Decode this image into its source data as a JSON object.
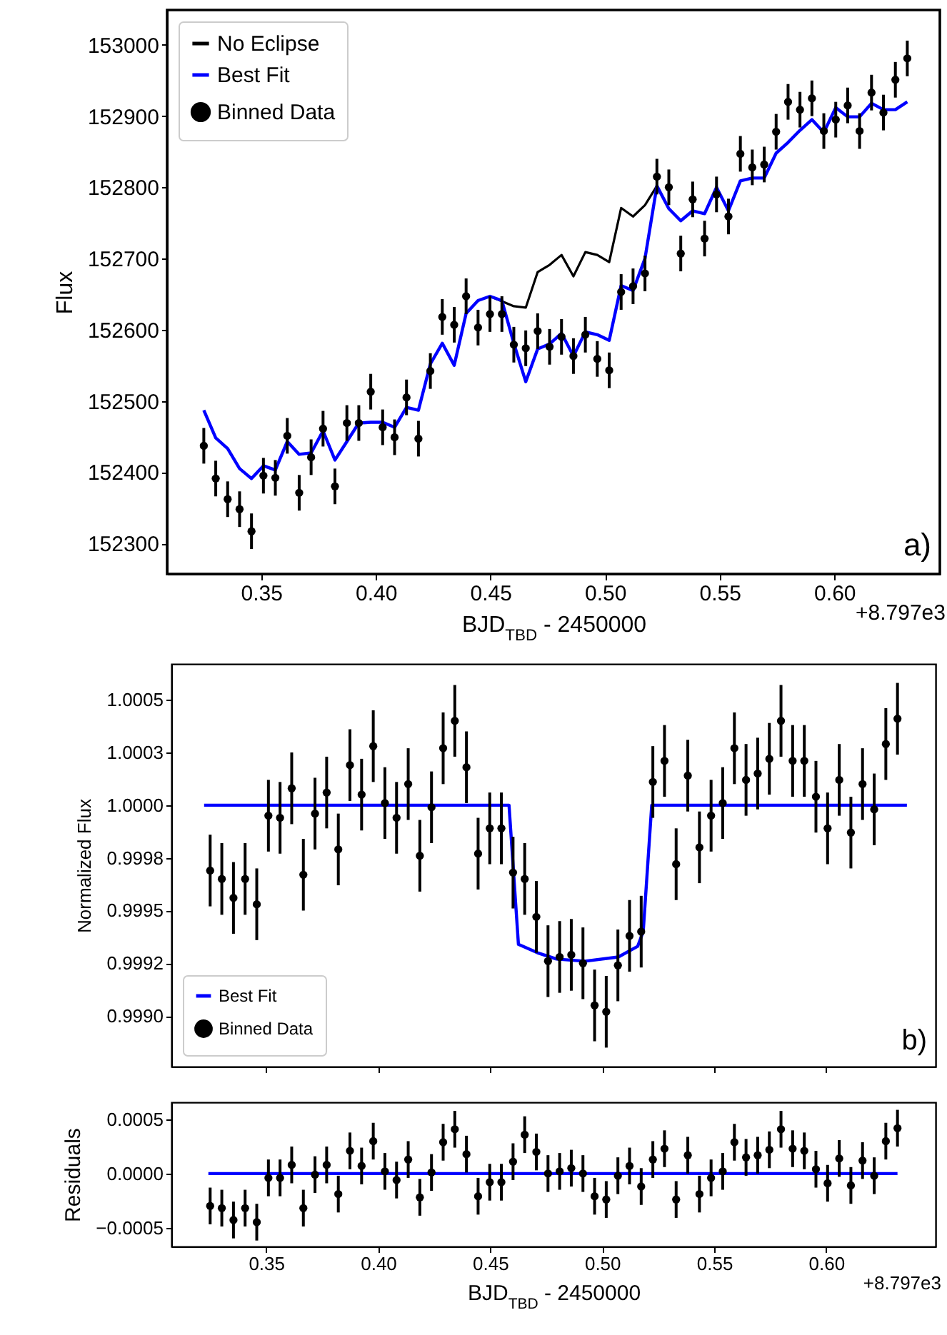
{
  "chart_data": [
    {
      "type": "scatter",
      "xlabel": "BJD$_{TBD}$ - 2450000",
      "ylabel": "Flux",
      "xlim": [
        0.309,
        0.646
      ],
      "xticks": [
        0.35,
        {
          "value": 0.4,
          "label": "0.40"
        },
        0.45,
        {
          "value": 0.5,
          "label": "0.50"
        },
        0.55,
        {
          "value": 0.6,
          "label": "0.60"
        }
      ],
      "ylim": [
        152257,
        153049
      ],
      "yticks": [
        152300,
        152400,
        152500,
        152600,
        152700,
        152800,
        152900,
        153000
      ],
      "legend": "top left",
      "grid": false,
      "annotations": [
        "a)",
        "+8.797e3"
      ],
      "x": [
        0.325,
        0.3302,
        0.3354,
        0.3406,
        0.3458,
        0.351,
        0.3562,
        0.3614,
        0.3666,
        0.3718,
        0.377,
        0.3822,
        0.3874,
        0.3926,
        0.3978,
        0.403,
        0.4082,
        0.4134,
        0.4186,
        0.4238,
        0.429,
        0.4342,
        0.4394,
        0.4446,
        0.4498,
        0.455,
        0.4602,
        0.4654,
        0.4706,
        0.4758,
        0.481,
        0.4862,
        0.4914,
        0.4966,
        0.5018,
        0.507,
        0.5122,
        0.5174,
        0.5226,
        0.5278,
        0.533,
        0.5382,
        0.5434,
        0.5486,
        0.5538,
        0.559,
        0.5642,
        0.5694,
        0.5746,
        0.5798,
        0.585,
        0.5902,
        0.5954,
        0.6006,
        0.6058,
        0.611,
        0.6162,
        0.6214,
        0.6266,
        0.6318
      ],
      "series": [
        {
          "name": "No Eclipse",
          "type": "line",
          "color": "#000000",
          "values": [
            null,
            null,
            null,
            null,
            null,
            null,
            null,
            null,
            null,
            null,
            null,
            null,
            null,
            null,
            null,
            null,
            null,
            null,
            null,
            null,
            null,
            null,
            null,
            null,
            152647,
            152640,
            152633,
            152631,
            152681,
            152691,
            152705,
            152675,
            152709,
            152705,
            152695,
            152771,
            152759,
            152775,
            152802,
            null,
            null,
            null,
            null,
            null,
            null,
            null,
            null,
            null,
            null,
            null,
            null,
            null,
            null,
            null,
            null,
            null,
            null,
            null,
            null,
            null
          ]
        },
        {
          "name": "Best Fit",
          "type": "line",
          "color": "#0000ff",
          "values": [
            152487,
            152448,
            152433,
            152405,
            152391,
            152409,
            152403,
            152443,
            152425,
            152427,
            152458,
            152417,
            152443,
            152469,
            152470,
            152470,
            152463,
            152491,
            152487,
            152552,
            152581,
            152550,
            152623,
            152641,
            152647,
            152641,
            152581,
            152527,
            152573,
            152580,
            152595,
            152563,
            152597,
            152593,
            152585,
            152662,
            152655,
            152700,
            152802,
            152770,
            152753,
            152767,
            152763,
            152800,
            152767,
            152809,
            152813,
            152813,
            152848,
            152863,
            152880,
            152895,
            152877,
            152912,
            152899,
            152899,
            152918,
            152909,
            152909,
            152920
          ]
        },
        {
          "name": "Binned Data",
          "marker": "circle",
          "color": "#000000",
          "values": [
            152437,
            152391,
            152362,
            152348,
            152317,
            152395,
            152392,
            152451,
            152371,
            152421,
            152461,
            152380,
            152469,
            152469,
            152513,
            152463,
            152449,
            152505,
            152447,
            152542,
            152618,
            152607,
            152647,
            152603,
            152622,
            152622,
            152579,
            152574,
            152598,
            152576,
            152590,
            152563,
            152593,
            152559,
            152543,
            152653,
            152661,
            152679,
            152815,
            152800,
            152707,
            152783,
            152728,
            152790,
            152759,
            152847,
            152828,
            152832,
            152878,
            152920,
            152909,
            152925,
            152879,
            152895,
            152915,
            152879,
            152933,
            152905,
            152951,
            152981
          ],
          "errors": [
            25,
            25,
            25,
            25,
            25,
            25,
            25,
            25,
            25,
            25,
            25,
            25,
            25,
            25,
            25,
            25,
            25,
            25,
            25,
            25,
            25,
            25,
            25,
            25,
            25,
            25,
            25,
            25,
            25,
            25,
            25,
            25,
            25,
            25,
            25,
            25,
            25,
            25,
            25,
            25,
            25,
            25,
            25,
            25,
            25,
            25,
            25,
            25,
            25,
            25,
            25,
            25,
            25,
            25,
            25,
            25,
            25,
            25,
            25,
            25
          ]
        }
      ]
    },
    {
      "type": "scatter",
      "ylabel": "Normalized Flux",
      "xlim": [
        0.3077,
        0.6488
      ],
      "xticks": [
        0.35,
        0.4,
        0.45,
        0.5,
        0.55,
        0.6
      ],
      "ylim": [
        0.99876,
        1.00067
      ],
      "yticks": [
        {
          "value": 0.999,
          "label": "0.9990"
        },
        {
          "value": 0.99925,
          "label": "0.9992"
        },
        0.9995,
        {
          "value": 0.99975,
          "label": "0.9998"
        },
        {
          "value": 1,
          "label": "1.0000"
        },
        {
          "value": 1.00025,
          "label": "1.0003"
        },
        1.0005
      ],
      "tick_labels": "y",
      "legend": "bottom left",
      "grid": false,
      "annotations": [
        "b)"
      ],
      "x": [
        0.325,
        0.3302,
        0.3354,
        0.3406,
        0.3458,
        0.351,
        0.3562,
        0.3614,
        0.3666,
        0.3718,
        0.377,
        0.3822,
        0.3874,
        0.3926,
        0.3978,
        0.403,
        0.4082,
        0.4134,
        0.4186,
        0.4238,
        0.429,
        0.4342,
        0.4394,
        0.4446,
        0.4498,
        0.455,
        0.4602,
        0.4654,
        0.4706,
        0.4758,
        0.481,
        0.4862,
        0.4914,
        0.4966,
        0.5018,
        0.507,
        0.5122,
        0.5174,
        0.5226,
        0.5278,
        0.533,
        0.5382,
        0.5434,
        0.5486,
        0.5538,
        0.559,
        0.5642,
        0.5694,
        0.5746,
        0.5798,
        0.585,
        0.5902,
        0.5954,
        0.6006,
        0.6058,
        0.611,
        0.6162,
        0.6214,
        0.6266,
        0.6318
      ],
      "series": [
        {
          "name": "Best Fit",
          "type": "line",
          "color": "#0000ff",
          "x": [
            0.3223,
            0.4584,
            0.4626,
            0.4711,
            0.4796,
            0.4923,
            0.5072,
            0.5158,
            0.5183,
            0.5221,
            0.636
          ],
          "values": [
            1,
            1,
            0.99934,
            0.9993,
            0.99927,
            0.99926,
            0.99928,
            0.99933,
            0.9994,
            1,
            1
          ]
        },
        {
          "name": "Binned Data",
          "marker": "circle",
          "color": "#000000",
          "values": [
            0.99969,
            0.99965,
            0.99956,
            0.99965,
            0.99953,
            0.99995,
            0.99994,
            1.00008,
            0.99967,
            0.99996,
            1.00006,
            0.99979,
            1.00019,
            1.00005,
            1.00028,
            1.00001,
            0.99994,
            1.0001,
            0.99976,
            0.99999,
            1.00027,
            1.0004,
            1.00018,
            0.99977,
            0.99989,
            0.99989,
            0.99968,
            0.99965,
            0.99947,
            0.99926,
            0.99928,
            0.99929,
            0.99925,
            0.99905,
            0.99902,
            0.99924,
            0.99938,
            0.9994,
            1.00011,
            1.00021,
            0.99972,
            1.00014,
            0.9998,
            0.99995,
            1.00001,
            1.00027,
            1.00012,
            1.00015,
            1.00022,
            1.0004,
            1.00021,
            1.00021,
            1.00004,
            0.99989,
            1.00012,
            0.99987,
            1.0001,
            0.99998,
            1.00029,
            1.00041
          ],
          "errors": [
            0.00017,
            0.00017,
            0.00017,
            0.00017,
            0.00017,
            0.00017,
            0.00017,
            0.00017,
            0.00017,
            0.00017,
            0.00017,
            0.00017,
            0.00017,
            0.00017,
            0.00017,
            0.00017,
            0.00017,
            0.00017,
            0.00017,
            0.00017,
            0.00017,
            0.00017,
            0.00017,
            0.00017,
            0.00017,
            0.00017,
            0.00017,
            0.00017,
            0.00017,
            0.00017,
            0.00017,
            0.00017,
            0.00017,
            0.00017,
            0.00017,
            0.00017,
            0.00017,
            0.00017,
            0.00017,
            0.00017,
            0.00017,
            0.00017,
            0.00017,
            0.00017,
            0.00017,
            0.00017,
            0.00017,
            0.00017,
            0.00017,
            0.00017,
            0.00017,
            0.00017,
            0.00017,
            0.00017,
            0.00017,
            0.00017,
            0.00017,
            0.00017,
            0.00017,
            0.00017
          ]
        }
      ]
    },
    {
      "type": "scatter",
      "xlabel": "BJD$_{TBD}$ - 2450000",
      "ylabel": "Residuals",
      "xlim": [
        0.3077,
        0.6488
      ],
      "xticks": [
        0.35,
        {
          "value": 0.4,
          "label": "0.40"
        },
        0.45,
        {
          "value": 0.5,
          "label": "0.50"
        },
        0.55,
        {
          "value": 0.6,
          "label": "0.60"
        }
      ],
      "ylim": [
        -0.000675,
        0.00066
      ],
      "yticks": [
        {
          "value": -0.0005,
          "label": "−0.0005"
        },
        {
          "value": 0,
          "label": "0.0000"
        },
        0.0005
      ],
      "grid": false,
      "annotations": [
        "+8.797e3"
      ],
      "x": [
        0.325,
        0.3302,
        0.3354,
        0.3406,
        0.3458,
        0.351,
        0.3562,
        0.3614,
        0.3666,
        0.3718,
        0.377,
        0.3822,
        0.3874,
        0.3926,
        0.3978,
        0.403,
        0.4082,
        0.4134,
        0.4186,
        0.4238,
        0.429,
        0.4342,
        0.4394,
        0.4446,
        0.4498,
        0.455,
        0.4602,
        0.4654,
        0.4706,
        0.4758,
        0.481,
        0.4862,
        0.4914,
        0.4966,
        0.5018,
        0.507,
        0.5122,
        0.5174,
        0.5226,
        0.5278,
        0.533,
        0.5382,
        0.5434,
        0.5486,
        0.5538,
        0.559,
        0.5642,
        0.5694,
        0.5746,
        0.5798,
        0.585,
        0.5902,
        0.5954,
        0.6006,
        0.6058,
        0.611,
        0.6162,
        0.6214,
        0.6266,
        0.6318
      ],
      "series": [
        {
          "type": "line",
          "color": "#0000ff",
          "x": [
            0.3242,
            0.6318
          ],
          "values": [
            0,
            0
          ]
        },
        {
          "marker": "circle",
          "color": "#000000",
          "values": [
            -0.0003,
            -0.00032,
            -0.00043,
            -0.00032,
            -0.00045,
            -4e-05,
            -4e-05,
            8e-05,
            -0.00032,
            -1e-05,
            8e-05,
            -0.00019,
            0.00021,
            7e-05,
            0.0003,
            2e-05,
            -6e-05,
            0.00013,
            -0.00022,
            1e-05,
            0.00029,
            0.00041,
            0.00018,
            -0.00021,
            -8e-05,
            -8e-05,
            0.00011,
            0.00036,
            0.0002,
            0,
            2e-05,
            5e-05,
            0,
            -0.00021,
            -0.00024,
            -2e-05,
            7e-05,
            -0.00012,
            0.00013,
            0.00023,
            -0.00024,
            0.00017,
            -0.00019,
            -4e-05,
            2e-05,
            0.00029,
            0.00015,
            0.00017,
            0.00022,
            0.00041,
            0.00023,
            0.00021,
            4e-05,
            -9e-05,
            0.00014,
            -0.00011,
            0.00012,
            -2e-05,
            0.0003,
            0.00042
          ],
          "errors": [
            0.00017,
            0.00017,
            0.00017,
            0.00017,
            0.00017,
            0.00017,
            0.00017,
            0.00017,
            0.00017,
            0.00017,
            0.00017,
            0.00017,
            0.00017,
            0.00017,
            0.00017,
            0.00017,
            0.00017,
            0.00017,
            0.00017,
            0.00017,
            0.00017,
            0.00017,
            0.00017,
            0.00017,
            0.00017,
            0.00017,
            0.00017,
            0.00017,
            0.00017,
            0.00017,
            0.00017,
            0.00017,
            0.00017,
            0.00017,
            0.00017,
            0.00017,
            0.00017,
            0.00017,
            0.00017,
            0.00017,
            0.00017,
            0.00017,
            0.00017,
            0.00017,
            0.00017,
            0.00017,
            0.00017,
            0.00017,
            0.00017,
            0.00017,
            0.00017,
            0.00017,
            0.00017,
            0.00017,
            0.00017,
            0.00017,
            0.00017,
            0.00017,
            0.00017,
            0.00017
          ]
        }
      ]
    }
  ]
}
